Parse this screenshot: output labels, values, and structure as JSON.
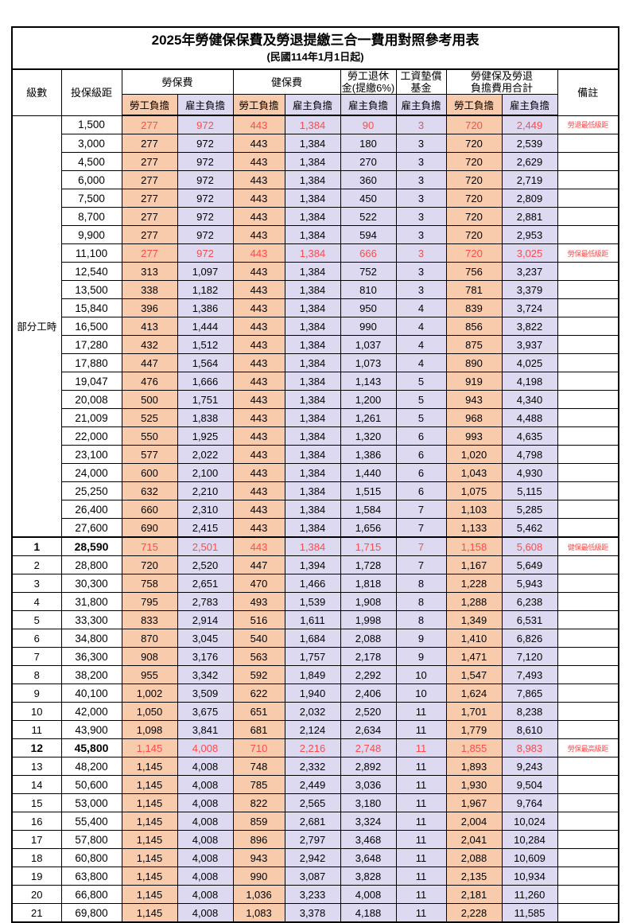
{
  "title": "2025年勞健保保費及勞退提繳三合一費用對照參考用表",
  "subtitle": "(民國114年1月1日起)",
  "colors": {
    "employee_bg": "#F8CBAD",
    "employer_bg": "#DCD9F1",
    "highlight_red": "#FF4B4B",
    "border": "#000000"
  },
  "header": {
    "level": "級數",
    "bracket": "投保級距",
    "labor_fee": "勞保費",
    "health_fee": "健保費",
    "pension_line1": "勞工退休",
    "pension_line2": "金(提繳6%)",
    "wage_fund_line1": "工資墊償",
    "wage_fund_line2": "基金",
    "total_line1": "勞健保及勞退",
    "total_line2": "負擔費用合計",
    "note": "備註",
    "employee_share": "勞工負擔",
    "employer_share": "雇主負擔"
  },
  "table": {
    "group_label": "部分工時",
    "group_span": 23,
    "rows": [
      {
        "bracket": "1,500",
        "labor_emp": "277",
        "labor_er": "972",
        "health_emp": "443",
        "health_er": "1,384",
        "pension_er": "90",
        "fund_er": "3",
        "total_emp": "720",
        "total_er": "2,449",
        "note": "勞退最低級距",
        "red": true
      },
      {
        "bracket": "3,000",
        "labor_emp": "277",
        "labor_er": "972",
        "health_emp": "443",
        "health_er": "1,384",
        "pension_er": "180",
        "fund_er": "3",
        "total_emp": "720",
        "total_er": "2,539",
        "note": ""
      },
      {
        "bracket": "4,500",
        "labor_emp": "277",
        "labor_er": "972",
        "health_emp": "443",
        "health_er": "1,384",
        "pension_er": "270",
        "fund_er": "3",
        "total_emp": "720",
        "total_er": "2,629",
        "note": ""
      },
      {
        "bracket": "6,000",
        "labor_emp": "277",
        "labor_er": "972",
        "health_emp": "443",
        "health_er": "1,384",
        "pension_er": "360",
        "fund_er": "3",
        "total_emp": "720",
        "total_er": "2,719",
        "note": ""
      },
      {
        "bracket": "7,500",
        "labor_emp": "277",
        "labor_er": "972",
        "health_emp": "443",
        "health_er": "1,384",
        "pension_er": "450",
        "fund_er": "3",
        "total_emp": "720",
        "total_er": "2,809",
        "note": ""
      },
      {
        "bracket": "8,700",
        "labor_emp": "277",
        "labor_er": "972",
        "health_emp": "443",
        "health_er": "1,384",
        "pension_er": "522",
        "fund_er": "3",
        "total_emp": "720",
        "total_er": "2,881",
        "note": ""
      },
      {
        "bracket": "9,900",
        "labor_emp": "277",
        "labor_er": "972",
        "health_emp": "443",
        "health_er": "1,384",
        "pension_er": "594",
        "fund_er": "3",
        "total_emp": "720",
        "total_er": "2,953",
        "note": ""
      },
      {
        "bracket": "11,100",
        "labor_emp": "277",
        "labor_er": "972",
        "health_emp": "443",
        "health_er": "1,384",
        "pension_er": "666",
        "fund_er": "3",
        "total_emp": "720",
        "total_er": "3,025",
        "note": "勞保最低級距",
        "red": true
      },
      {
        "bracket": "12,540",
        "labor_emp": "313",
        "labor_er": "1,097",
        "health_emp": "443",
        "health_er": "1,384",
        "pension_er": "752",
        "fund_er": "3",
        "total_emp": "756",
        "total_er": "3,237",
        "note": ""
      },
      {
        "bracket": "13,500",
        "labor_emp": "338",
        "labor_er": "1,182",
        "health_emp": "443",
        "health_er": "1,384",
        "pension_er": "810",
        "fund_er": "3",
        "total_emp": "781",
        "total_er": "3,379",
        "note": ""
      },
      {
        "bracket": "15,840",
        "labor_emp": "396",
        "labor_er": "1,386",
        "health_emp": "443",
        "health_er": "1,384",
        "pension_er": "950",
        "fund_er": "4",
        "total_emp": "839",
        "total_er": "3,724",
        "note": ""
      },
      {
        "bracket": "16,500",
        "labor_emp": "413",
        "labor_er": "1,444",
        "health_emp": "443",
        "health_er": "1,384",
        "pension_er": "990",
        "fund_er": "4",
        "total_emp": "856",
        "total_er": "3,822",
        "note": ""
      },
      {
        "bracket": "17,280",
        "labor_emp": "432",
        "labor_er": "1,512",
        "health_emp": "443",
        "health_er": "1,384",
        "pension_er": "1,037",
        "fund_er": "4",
        "total_emp": "875",
        "total_er": "3,937",
        "note": ""
      },
      {
        "bracket": "17,880",
        "labor_emp": "447",
        "labor_er": "1,564",
        "health_emp": "443",
        "health_er": "1,384",
        "pension_er": "1,073",
        "fund_er": "4",
        "total_emp": "890",
        "total_er": "4,025",
        "note": ""
      },
      {
        "bracket": "19,047",
        "labor_emp": "476",
        "labor_er": "1,666",
        "health_emp": "443",
        "health_er": "1,384",
        "pension_er": "1,143",
        "fund_er": "5",
        "total_emp": "919",
        "total_er": "4,198",
        "note": ""
      },
      {
        "bracket": "20,008",
        "labor_emp": "500",
        "labor_er": "1,751",
        "health_emp": "443",
        "health_er": "1,384",
        "pension_er": "1,200",
        "fund_er": "5",
        "total_emp": "943",
        "total_er": "4,340",
        "note": ""
      },
      {
        "bracket": "21,009",
        "labor_emp": "525",
        "labor_er": "1,838",
        "health_emp": "443",
        "health_er": "1,384",
        "pension_er": "1,261",
        "fund_er": "5",
        "total_emp": "968",
        "total_er": "4,488",
        "note": ""
      },
      {
        "bracket": "22,000",
        "labor_emp": "550",
        "labor_er": "1,925",
        "health_emp": "443",
        "health_er": "1,384",
        "pension_er": "1,320",
        "fund_er": "6",
        "total_emp": "993",
        "total_er": "4,635",
        "note": ""
      },
      {
        "bracket": "23,100",
        "labor_emp": "577",
        "labor_er": "2,022",
        "health_emp": "443",
        "health_er": "1,384",
        "pension_er": "1,386",
        "fund_er": "6",
        "total_emp": "1,020",
        "total_er": "4,798",
        "note": ""
      },
      {
        "bracket": "24,000",
        "labor_emp": "600",
        "labor_er": "2,100",
        "health_emp": "443",
        "health_er": "1,384",
        "pension_er": "1,440",
        "fund_er": "6",
        "total_emp": "1,043",
        "total_er": "4,930",
        "note": ""
      },
      {
        "bracket": "25,250",
        "labor_emp": "632",
        "labor_er": "2,210",
        "health_emp": "443",
        "health_er": "1,384",
        "pension_er": "1,515",
        "fund_er": "6",
        "total_emp": "1,075",
        "total_er": "5,115",
        "note": ""
      },
      {
        "bracket": "26,400",
        "labor_emp": "660",
        "labor_er": "2,310",
        "health_emp": "443",
        "health_er": "1,384",
        "pension_er": "1,584",
        "fund_er": "7",
        "total_emp": "1,103",
        "total_er": "5,285",
        "note": ""
      },
      {
        "bracket": "27,600",
        "labor_emp": "690",
        "labor_er": "2,415",
        "health_emp": "443",
        "health_er": "1,384",
        "pension_er": "1,656",
        "fund_er": "7",
        "total_emp": "1,133",
        "total_er": "5,462",
        "note": ""
      },
      {
        "level": "1",
        "bracket": "28,590",
        "labor_emp": "715",
        "labor_er": "2,501",
        "health_emp": "443",
        "health_er": "1,384",
        "pension_er": "1,715",
        "fund_er": "7",
        "total_emp": "1,158",
        "total_er": "5,608",
        "note": "健保最低級距",
        "red": true,
        "bold": true,
        "sep": true
      },
      {
        "level": "2",
        "bracket": "28,800",
        "labor_emp": "720",
        "labor_er": "2,520",
        "health_emp": "447",
        "health_er": "1,394",
        "pension_er": "1,728",
        "fund_er": "7",
        "total_emp": "1,167",
        "total_er": "5,649",
        "note": ""
      },
      {
        "level": "3",
        "bracket": "30,300",
        "labor_emp": "758",
        "labor_er": "2,651",
        "health_emp": "470",
        "health_er": "1,466",
        "pension_er": "1,818",
        "fund_er": "8",
        "total_emp": "1,228",
        "total_er": "5,943",
        "note": ""
      },
      {
        "level": "4",
        "bracket": "31,800",
        "labor_emp": "795",
        "labor_er": "2,783",
        "health_emp": "493",
        "health_er": "1,539",
        "pension_er": "1,908",
        "fund_er": "8",
        "total_emp": "1,288",
        "total_er": "6,238",
        "note": ""
      },
      {
        "level": "5",
        "bracket": "33,300",
        "labor_emp": "833",
        "labor_er": "2,914",
        "health_emp": "516",
        "health_er": "1,611",
        "pension_er": "1,998",
        "fund_er": "8",
        "total_emp": "1,349",
        "total_er": "6,531",
        "note": ""
      },
      {
        "level": "6",
        "bracket": "34,800",
        "labor_emp": "870",
        "labor_er": "3,045",
        "health_emp": "540",
        "health_er": "1,684",
        "pension_er": "2,088",
        "fund_er": "9",
        "total_emp": "1,410",
        "total_er": "6,826",
        "note": ""
      },
      {
        "level": "7",
        "bracket": "36,300",
        "labor_emp": "908",
        "labor_er": "3,176",
        "health_emp": "563",
        "health_er": "1,757",
        "pension_er": "2,178",
        "fund_er": "9",
        "total_emp": "1,471",
        "total_er": "7,120",
        "note": ""
      },
      {
        "level": "8",
        "bracket": "38,200",
        "labor_emp": "955",
        "labor_er": "3,342",
        "health_emp": "592",
        "health_er": "1,849",
        "pension_er": "2,292",
        "fund_er": "10",
        "total_emp": "1,547",
        "total_er": "7,493",
        "note": ""
      },
      {
        "level": "9",
        "bracket": "40,100",
        "labor_emp": "1,002",
        "labor_er": "3,509",
        "health_emp": "622",
        "health_er": "1,940",
        "pension_er": "2,406",
        "fund_er": "10",
        "total_emp": "1,624",
        "total_er": "7,865",
        "note": ""
      },
      {
        "level": "10",
        "bracket": "42,000",
        "labor_emp": "1,050",
        "labor_er": "3,675",
        "health_emp": "651",
        "health_er": "2,032",
        "pension_er": "2,520",
        "fund_er": "11",
        "total_emp": "1,701",
        "total_er": "8,238",
        "note": ""
      },
      {
        "level": "11",
        "bracket": "43,900",
        "labor_emp": "1,098",
        "labor_er": "3,841",
        "health_emp": "681",
        "health_er": "2,124",
        "pension_er": "2,634",
        "fund_er": "11",
        "total_emp": "1,779",
        "total_er": "8,610",
        "note": ""
      },
      {
        "level": "12",
        "bracket": "45,800",
        "labor_emp": "1,145",
        "labor_er": "4,008",
        "health_emp": "710",
        "health_er": "2,216",
        "pension_er": "2,748",
        "fund_er": "11",
        "total_emp": "1,855",
        "total_er": "8,983",
        "note": "勞保最高級距",
        "red": true,
        "bold": true
      },
      {
        "level": "13",
        "bracket": "48,200",
        "labor_emp": "1,145",
        "labor_er": "4,008",
        "health_emp": "748",
        "health_er": "2,332",
        "pension_er": "2,892",
        "fund_er": "11",
        "total_emp": "1,893",
        "total_er": "9,243",
        "note": ""
      },
      {
        "level": "14",
        "bracket": "50,600",
        "labor_emp": "1,145",
        "labor_er": "4,008",
        "health_emp": "785",
        "health_er": "2,449",
        "pension_er": "3,036",
        "fund_er": "11",
        "total_emp": "1,930",
        "total_er": "9,504",
        "note": ""
      },
      {
        "level": "15",
        "bracket": "53,000",
        "labor_emp": "1,145",
        "labor_er": "4,008",
        "health_emp": "822",
        "health_er": "2,565",
        "pension_er": "3,180",
        "fund_er": "11",
        "total_emp": "1,967",
        "total_er": "9,764",
        "note": ""
      },
      {
        "level": "16",
        "bracket": "55,400",
        "labor_emp": "1,145",
        "labor_er": "4,008",
        "health_emp": "859",
        "health_er": "2,681",
        "pension_er": "3,324",
        "fund_er": "11",
        "total_emp": "2,004",
        "total_er": "10,024",
        "note": ""
      },
      {
        "level": "17",
        "bracket": "57,800",
        "labor_emp": "1,145",
        "labor_er": "4,008",
        "health_emp": "896",
        "health_er": "2,797",
        "pension_er": "3,468",
        "fund_er": "11",
        "total_emp": "2,041",
        "total_er": "10,284",
        "note": ""
      },
      {
        "level": "18",
        "bracket": "60,800",
        "labor_emp": "1,145",
        "labor_er": "4,008",
        "health_emp": "943",
        "health_er": "2,942",
        "pension_er": "3,648",
        "fund_er": "11",
        "total_emp": "2,088",
        "total_er": "10,609",
        "note": ""
      },
      {
        "level": "19",
        "bracket": "63,800",
        "labor_emp": "1,145",
        "labor_er": "4,008",
        "health_emp": "990",
        "health_er": "3,087",
        "pension_er": "3,828",
        "fund_er": "11",
        "total_emp": "2,135",
        "total_er": "10,934",
        "note": ""
      },
      {
        "level": "20",
        "bracket": "66,800",
        "labor_emp": "1,145",
        "labor_er": "4,008",
        "health_emp": "1,036",
        "health_er": "3,233",
        "pension_er": "4,008",
        "fund_er": "11",
        "total_emp": "2,181",
        "total_er": "11,260",
        "note": ""
      },
      {
        "level": "21",
        "bracket": "69,800",
        "labor_emp": "1,145",
        "labor_er": "4,008",
        "health_emp": "1,083",
        "health_er": "3,378",
        "pension_er": "4,188",
        "fund_er": "11",
        "total_emp": "2,228",
        "total_er": "11,585",
        "note": ""
      }
    ]
  }
}
